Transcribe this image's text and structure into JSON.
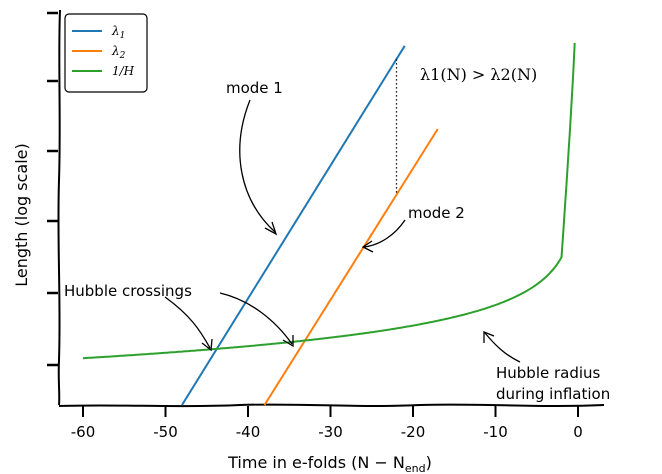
{
  "chart_data": {
    "type": "line",
    "title": "",
    "xlabel": "Time in e-folds (N − N",
    "xlabel_sub": "end",
    "xlabel_close": ")",
    "ylabel": "Length (log scale)",
    "xlim": [
      -63,
      3
    ],
    "x_ticks": [
      -60,
      -50,
      -40,
      -30,
      -20,
      -10,
      0
    ],
    "x_tick_labels": [
      "-60",
      "-50",
      "-40",
      "-30",
      "-20",
      "-10",
      "0"
    ],
    "y_ticks_count": 7,
    "y_tick_labels": [],
    "legend": {
      "position": "top-left",
      "entries": [
        {
          "label": "λ",
          "sub": "1",
          "color": "#1f77b4"
        },
        {
          "label": "λ",
          "sub": "2",
          "color": "#ff7f0e"
        },
        {
          "label": "1/H",
          "sub": "",
          "color": "#2ca02c"
        }
      ]
    },
    "series": [
      {
        "name": "λ1",
        "color": "#1f77b4",
        "x": [
          -48,
          -21
        ],
        "y": [
          0.0,
          8.98
        ]
      },
      {
        "name": "λ2",
        "color": "#ff7f0e",
        "x": [
          -38,
          -17
        ],
        "y": [
          0.0,
          6.9
        ]
      },
      {
        "name": "1/H",
        "color": "#2ca02c",
        "kind": "hubble",
        "x_start": -60,
        "x_end": -0.3
      }
    ],
    "annotations": {
      "mode1": "mode 1",
      "mode2": "mode 2",
      "hubble_crossings": "Hubble crossings",
      "hubble_radius_line1": "Hubble radius",
      "hubble_radius_line2": "during inflation",
      "inequality": "λ1(N) > λ2(N)"
    }
  }
}
